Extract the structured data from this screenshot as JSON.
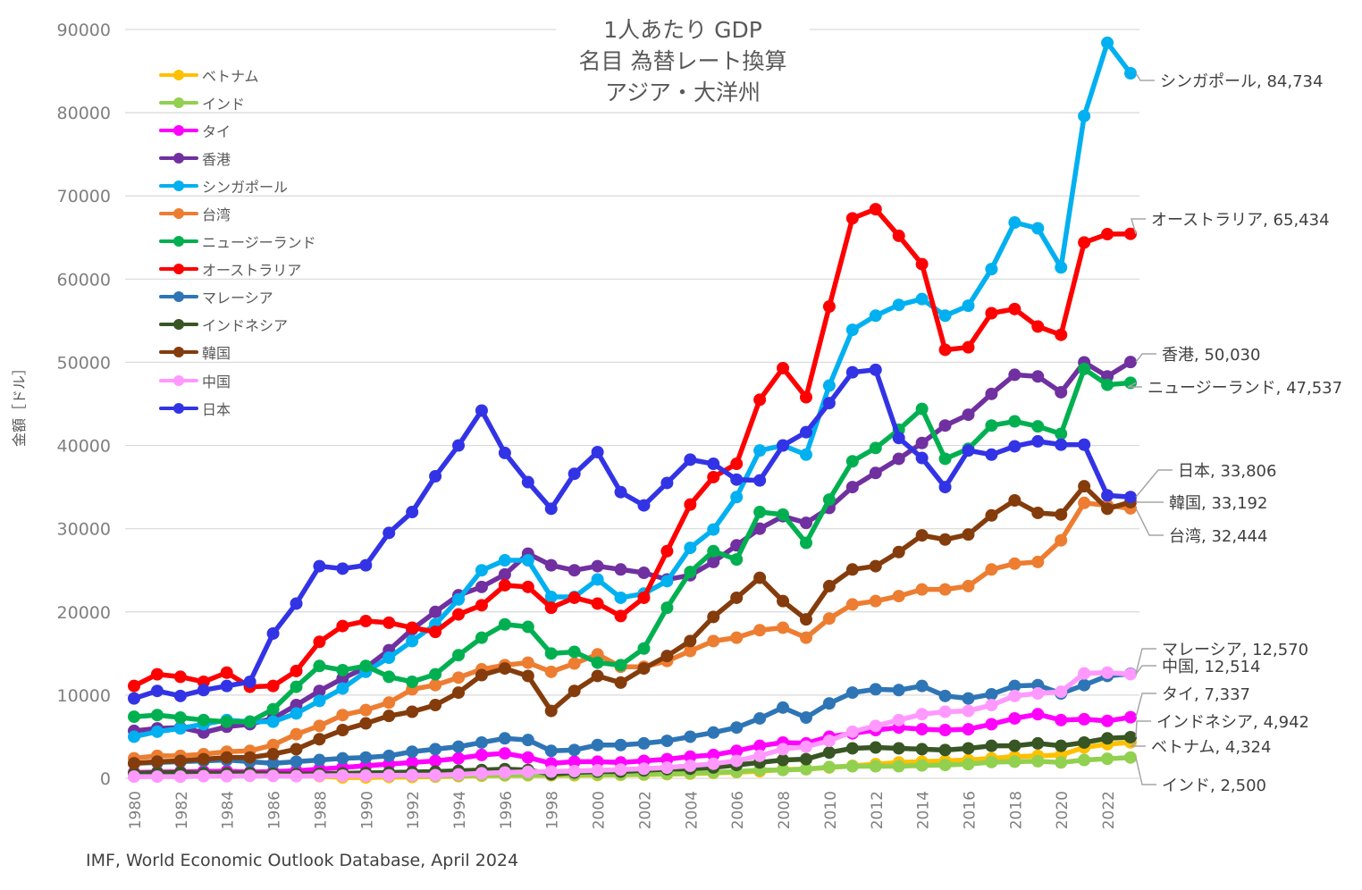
{
  "title": {
    "line1": "1人あたり GDP",
    "line2": "名目 為替レート換算",
    "line3": "アジア・大洋州"
  },
  "source": "IMF, World Economic Outlook Database, April 2024",
  "chart_data": {
    "type": "line",
    "title": "1人あたり GDP 名目 為替レート換算 アジア・大洋州",
    "xlabel": "",
    "ylabel": "金額［ドル］",
    "ylim": [
      0,
      90000
    ],
    "yticks": [
      "0",
      "10000",
      "20000",
      "30000",
      "40000",
      "50000",
      "60000",
      "70000",
      "80000",
      "90000"
    ],
    "xticks": [
      "1980",
      "1982",
      "1984",
      "1986",
      "1988",
      "1990",
      "1992",
      "1994",
      "1996",
      "1998",
      "2000",
      "2002",
      "2004",
      "2006",
      "2008",
      "2010",
      "2012",
      "2014",
      "2016",
      "2018",
      "2020",
      "2022"
    ],
    "grid": "horizontal",
    "legend": "top-left",
    "x": [
      1980,
      1981,
      1982,
      1983,
      1984,
      1985,
      1986,
      1987,
      1988,
      1989,
      1990,
      1991,
      1992,
      1993,
      1994,
      1995,
      1996,
      1997,
      1998,
      1999,
      2000,
      2001,
      2002,
      2003,
      2004,
      2005,
      2006,
      2007,
      2008,
      2009,
      2010,
      2011,
      2012,
      2013,
      2014,
      2015,
      2016,
      2017,
      2018,
      2019,
      2020,
      2021,
      2022,
      2023
    ],
    "series": [
      {
        "name": "ベトナム",
        "color": "#FFC000",
        "end_label": "ベトナム, 4,324",
        "values": [
          550,
          500,
          480,
          420,
          380,
          300,
          400,
          600,
          250,
          100,
          100,
          150,
          150,
          200,
          250,
          300,
          340,
          360,
          350,
          360,
          390,
          410,
          440,
          490,
          550,
          640,
          730,
          840,
          1050,
          1100,
          1300,
          1500,
          1700,
          1900,
          2000,
          2100,
          2200,
          2400,
          2600,
          2700,
          2800,
          3700,
          4100,
          4324
        ]
      },
      {
        "name": "インド",
        "color": "#92D050",
        "end_label": "インド, 2,500",
        "values": [
          270,
          280,
          290,
          290,
          280,
          300,
          310,
          340,
          350,
          350,
          370,
          300,
          320,
          300,
          350,
          380,
          400,
          420,
          410,
          440,
          450,
          460,
          480,
          550,
          620,
          710,
          800,
          1000,
          1000,
          1100,
          1350,
          1450,
          1450,
          1450,
          1550,
          1600,
          1700,
          1950,
          2000,
          2050,
          1900,
          2200,
          2350,
          2500
        ]
      },
      {
        "name": "タイ",
        "color": "#FF00FF",
        "end_label": "タイ, 7,337",
        "values": [
          700,
          750,
          780,
          820,
          850,
          750,
          800,
          900,
          1100,
          1300,
          1500,
          1700,
          1900,
          2100,
          2400,
          2800,
          3000,
          2500,
          1800,
          2000,
          2000,
          1900,
          2100,
          2300,
          2600,
          2800,
          3300,
          3900,
          4300,
          4200,
          5000,
          5400,
          5800,
          6100,
          5900,
          5800,
          5900,
          6500,
          7200,
          7700,
          7000,
          7100,
          6900,
          7337
        ]
      },
      {
        "name": "香港",
        "color": "#7030A0",
        "end_label": "香港, 50,030",
        "values": [
          5700,
          6000,
          6100,
          5500,
          6200,
          6500,
          7200,
          8800,
          10500,
          12000,
          13300,
          15400,
          17900,
          20000,
          22000,
          23000,
          24500,
          27000,
          25600,
          25000,
          25500,
          25100,
          24700,
          23900,
          24400,
          26000,
          28000,
          30000,
          31500,
          30700,
          32500,
          35000,
          36700,
          38400,
          40300,
          42400,
          43700,
          46200,
          48500,
          48300,
          46400,
          50000,
          48300,
          50030
        ]
      },
      {
        "name": "シンガポール",
        "color": "#00B0F0",
        "end_label": "シンガポール, 84,734",
        "values": [
          5000,
          5600,
          6000,
          6500,
          7000,
          6800,
          6800,
          7800,
          9300,
          10800,
          12800,
          14500,
          16500,
          18500,
          21500,
          25000,
          26200,
          26200,
          21800,
          21800,
          23900,
          21700,
          22200,
          23700,
          27700,
          29900,
          33800,
          39400,
          40000,
          38900,
          47200,
          53900,
          55600,
          56900,
          57600,
          55600,
          56800,
          61200,
          66800,
          66100,
          61400,
          79600,
          88400,
          84734
        ]
      },
      {
        "name": "台湾",
        "color": "#ED7D31",
        "end_label": "台湾, 32,444",
        "values": [
          2400,
          2700,
          2700,
          2900,
          3200,
          3300,
          4000,
          5300,
          6300,
          7600,
          8200,
          9100,
          10700,
          11200,
          12100,
          13100,
          13600,
          13900,
          12800,
          13800,
          14900,
          13400,
          13400,
          14100,
          15300,
          16500,
          16900,
          17800,
          18100,
          16900,
          19200,
          20900,
          21300,
          21900,
          22700,
          22700,
          23100,
          25100,
          25800,
          26000,
          28600,
          33100,
          32800,
          32444
        ]
      },
      {
        "name": "ニュージーランド",
        "color": "#00B050",
        "end_label": "ニュージーランド, 47,537",
        "values": [
          7400,
          7600,
          7300,
          7000,
          6800,
          6800,
          8300,
          11000,
          13500,
          13000,
          13500,
          12200,
          11600,
          12500,
          14800,
          16900,
          18500,
          18200,
          15000,
          15200,
          13900,
          13600,
          15600,
          20500,
          24800,
          27300,
          26300,
          32000,
          31700,
          28300,
          33500,
          38100,
          39700,
          41900,
          44400,
          38400,
          39600,
          42400,
          42900,
          42300,
          41400,
          49200,
          47300,
          47537
        ]
      },
      {
        "name": "オーストラリア",
        "color": "#FF0000",
        "end_label": "オーストラリア, 65,434",
        "values": [
          11100,
          12500,
          12200,
          11600,
          12700,
          11000,
          11100,
          12900,
          16400,
          18300,
          18900,
          18700,
          18100,
          17600,
          19700,
          20800,
          23200,
          23000,
          20500,
          21700,
          21000,
          19500,
          21700,
          27300,
          32900,
          36200,
          37800,
          45500,
          49300,
          45800,
          56700,
          67300,
          68400,
          65200,
          61800,
          51500,
          51800,
          55900,
          56400,
          54300,
          53300,
          64400,
          65400,
          65434
        ]
      },
      {
        "name": "マレーシア",
        "color": "#2E75B6",
        "end_label": "マレーシア, 12,570",
        "values": [
          1800,
          1900,
          2000,
          2100,
          2200,
          2000,
          1800,
          2000,
          2200,
          2400,
          2500,
          2700,
          3200,
          3500,
          3800,
          4300,
          4800,
          4600,
          3300,
          3400,
          4000,
          4000,
          4200,
          4500,
          5000,
          5500,
          6100,
          7200,
          8500,
          7300,
          9000,
          10300,
          10700,
          10600,
          11100,
          9900,
          9600,
          10100,
          11100,
          11200,
          10200,
          11200,
          12300,
          12570
        ]
      },
      {
        "name": "インドネシア",
        "color": "#375623",
        "end_label": "インドネシア, 4,942",
        "values": [
          600,
          650,
          680,
          600,
          600,
          620,
          550,
          500,
          550,
          600,
          650,
          700,
          750,
          800,
          900,
          1000,
          1100,
          1000,
          500,
          700,
          800,
          800,
          950,
          1100,
          1150,
          1300,
          1600,
          1900,
          2200,
          2300,
          3100,
          3600,
          3700,
          3600,
          3500,
          3400,
          3600,
          3900,
          3900,
          4200,
          3900,
          4300,
          4800,
          4942
        ]
      },
      {
        "name": "韓国",
        "color": "#843C0C",
        "end_label": "韓国, 33,192",
        "values": [
          1800,
          2000,
          2100,
          2300,
          2500,
          2500,
          2900,
          3500,
          4700,
          5800,
          6600,
          7500,
          8000,
          8800,
          10300,
          12400,
          13200,
          12300,
          8100,
          10500,
          12300,
          11500,
          13200,
          14700,
          16500,
          19400,
          21700,
          24100,
          21300,
          19100,
          23100,
          25100,
          25500,
          27200,
          29200,
          28700,
          29300,
          31600,
          33400,
          31900,
          31700,
          35100,
          32400,
          33192
        ]
      },
      {
        "name": "中国",
        "color": "#FF99FF",
        "end_label": "中国, 12,514",
        "values": [
          200,
          200,
          200,
          250,
          250,
          300,
          280,
          250,
          300,
          320,
          320,
          350,
          370,
          380,
          470,
          600,
          700,
          780,
          820,
          870,
          960,
          1050,
          1150,
          1290,
          1510,
          1750,
          2100,
          2700,
          3500,
          3800,
          4500,
          5600,
          6300,
          7000,
          7700,
          8000,
          8100,
          8800,
          9900,
          10200,
          10400,
          12600,
          12700,
          12514
        ]
      },
      {
        "name": "日本",
        "color": "#3333E6",
        "end_label": "日本, 33,806",
        "values": [
          9600,
          10500,
          9900,
          10600,
          11100,
          11600,
          17400,
          21000,
          25500,
          25200,
          25600,
          29500,
          32000,
          36300,
          40000,
          44200,
          39100,
          35600,
          32400,
          36600,
          39200,
          34400,
          32800,
          35500,
          38300,
          37800,
          35900,
          35800,
          40000,
          41600,
          45100,
          48800,
          49100,
          40900,
          38500,
          35000,
          39400,
          38900,
          39900,
          40500,
          40100,
          40100,
          34000,
          33806
        ]
      }
    ]
  }
}
